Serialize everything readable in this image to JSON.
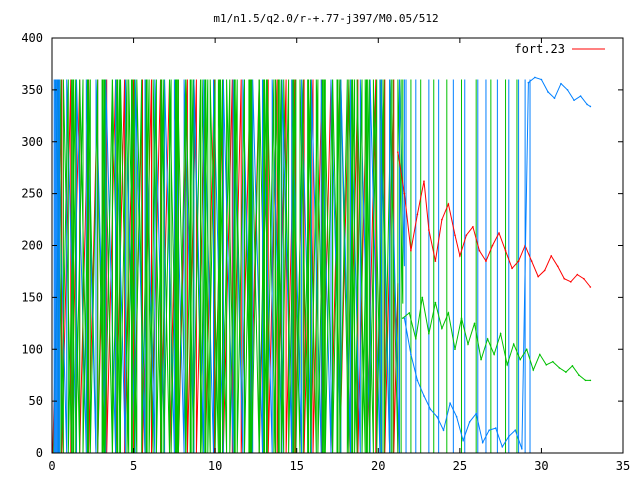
{
  "chart_data": {
    "type": "line",
    "title": "m1/n1.5/q2.0/r-+.77-j397/M0.05/512",
    "xlabel": "",
    "ylabel": "",
    "xlim": [
      0,
      35
    ],
    "ylim": [
      0,
      400
    ],
    "xticks": [
      0,
      5,
      10,
      15,
      20,
      25,
      30,
      35
    ],
    "yticks": [
      0,
      50,
      100,
      150,
      200,
      250,
      300,
      350,
      400
    ],
    "grid": false,
    "legend_position": "top-right",
    "legend": [
      {
        "label": "fort.23",
        "color": "#ff0000"
      }
    ],
    "series": [
      {
        "name": "fort.23",
        "color": "#ff0000",
        "x": [
          21.2,
          21.6,
          22.0,
          22.4,
          22.8,
          23.1,
          23.5,
          23.9,
          24.3,
          24.7,
          25.0,
          25.4,
          25.8,
          26.2,
          26.6,
          27.0,
          27.4,
          27.8,
          28.2,
          28.6,
          29.0,
          29.4,
          29.8,
          30.2,
          30.6,
          31.0,
          31.4,
          31.8,
          32.2,
          32.6,
          33.0
        ],
        "values": [
          290,
          250,
          195,
          230,
          262,
          215,
          185,
          225,
          240,
          210,
          190,
          210,
          218,
          195,
          185,
          200,
          212,
          195,
          178,
          185,
          200,
          185,
          170,
          176,
          190,
          180,
          168,
          165,
          172,
          168,
          160
        ]
      },
      {
        "color": "#0080ff",
        "x": [
          21.6,
          22.0,
          22.4,
          22.8,
          23.2,
          23.6,
          24.0,
          24.4,
          24.8,
          25.2,
          25.6,
          26.0,
          26.4,
          26.8,
          27.2,
          27.6,
          28.0,
          28.4,
          28.8,
          29.2,
          29.6,
          30.0,
          30.4,
          30.8,
          31.2,
          31.6,
          32.0,
          32.4,
          32.8,
          33.0
        ],
        "values": [
          130,
          95,
          70,
          55,
          42,
          35,
          22,
          48,
          35,
          12,
          30,
          38,
          10,
          22,
          24,
          6,
          16,
          22,
          4,
          357,
          362,
          360,
          348,
          342,
          356,
          350,
          340,
          344,
          336,
          334
        ]
      },
      {
        "color": "#00c000",
        "x": [
          21.5,
          21.9,
          22.3,
          22.7,
          23.1,
          23.5,
          23.9,
          24.3,
          24.7,
          25.1,
          25.5,
          25.9,
          26.3,
          26.7,
          27.1,
          27.5,
          27.9,
          28.3,
          28.7,
          29.1,
          29.5,
          29.9,
          30.3,
          30.7,
          31.1,
          31.5,
          31.9,
          32.3,
          32.7,
          33.0
        ],
        "values": [
          130,
          135,
          110,
          150,
          115,
          145,
          120,
          135,
          100,
          130,
          105,
          125,
          90,
          110,
          95,
          115,
          85,
          105,
          90,
          100,
          80,
          95,
          85,
          88,
          82,
          78,
          84,
          75,
          70,
          70
        ]
      }
    ]
  }
}
